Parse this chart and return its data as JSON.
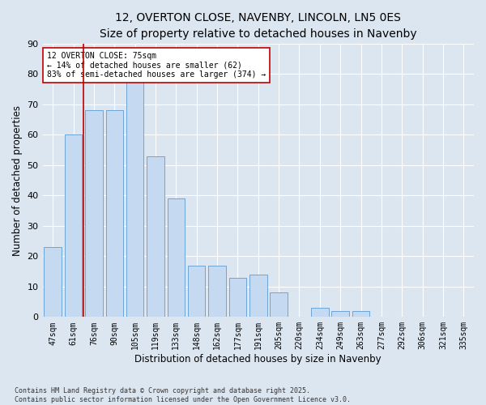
{
  "title": "12, OVERTON CLOSE, NAVENBY, LINCOLN, LN5 0ES",
  "subtitle": "Size of property relative to detached houses in Navenby",
  "xlabel": "Distribution of detached houses by size in Navenby",
  "ylabel": "Number of detached properties",
  "categories": [
    "47sqm",
    "61sqm",
    "76sqm",
    "90sqm",
    "105sqm",
    "119sqm",
    "133sqm",
    "148sqm",
    "162sqm",
    "177sqm",
    "191sqm",
    "205sqm",
    "220sqm",
    "234sqm",
    "249sqm",
    "263sqm",
    "277sqm",
    "292sqm",
    "306sqm",
    "321sqm",
    "335sqm"
  ],
  "values": [
    23,
    60,
    68,
    68,
    78,
    53,
    39,
    17,
    17,
    13,
    14,
    8,
    0,
    3,
    2,
    2,
    0,
    0,
    0,
    0,
    0
  ],
  "bar_color": "#c5d9f0",
  "bar_edge_color": "#5b9bd5",
  "vline_color": "#c00000",
  "annotation_text": "12 OVERTON CLOSE: 75sqm\n← 14% of detached houses are smaller (62)\n83% of semi-detached houses are larger (374) →",
  "annotation_box_color": "#ffffff",
  "annotation_box_edge": "#c00000",
  "ylim": [
    0,
    90
  ],
  "yticks": [
    0,
    10,
    20,
    30,
    40,
    50,
    60,
    70,
    80,
    90
  ],
  "bg_color": "#dce6f1",
  "plot_bg_color": "#dce6f1",
  "footer": "Contains HM Land Registry data © Crown copyright and database right 2025.\nContains public sector information licensed under the Open Government Licence v3.0.",
  "title_fontsize": 10,
  "tick_fontsize": 7,
  "label_fontsize": 8.5,
  "annotation_fontsize": 7,
  "footer_fontsize": 6
}
